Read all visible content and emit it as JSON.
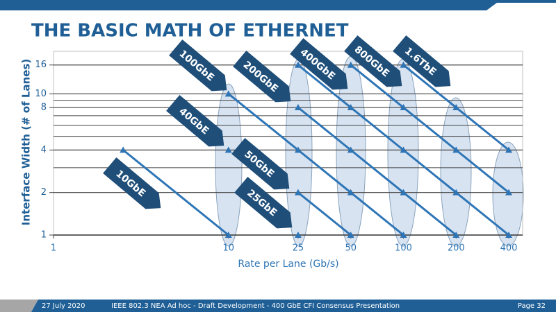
{
  "title": "THE BASIC MATH OF ETHERNET",
  "footer": {
    "date": "27 July 2020",
    "text": "IEEE 802.3 NEA Ad hoc - Draft Development - 400 GbE CFI Consensus Presentation",
    "page": "Page 32"
  },
  "chart_data": {
    "type": "line",
    "x_label": "Rate per Lane (Gb/s)",
    "y_label": "Interface Width (# of Lanes)",
    "xlog": true,
    "ylog": true,
    "color": "#2e75b6",
    "banner_color": "#1f4e79",
    "xlim": [
      1,
      480
    ],
    "xticks": [
      1,
      10,
      25,
      50,
      100,
      200,
      400
    ],
    "ylim": [
      1,
      20
    ],
    "yticks": [
      1,
      2,
      4,
      8,
      10,
      16
    ],
    "yminor": [
      3,
      5,
      6,
      7,
      9
    ],
    "series": [
      {
        "name": "10GbE",
        "x": [
          2.5,
          10
        ],
        "values": [
          4,
          1
        ]
      },
      {
        "name": "40GbE",
        "x": [
          10
        ],
        "values": [
          4
        ]
      },
      {
        "name": "100GbE",
        "x": [
          10,
          25,
          50,
          100
        ],
        "values": [
          10,
          4,
          2,
          1
        ]
      },
      {
        "name": "25GbE",
        "x": [
          25
        ],
        "values": [
          1
        ]
      },
      {
        "name": "50GbE",
        "x": [
          25,
          50
        ],
        "values": [
          2,
          1
        ]
      },
      {
        "name": "200GbE",
        "x": [
          25,
          50,
          100,
          200
        ],
        "values": [
          8,
          4,
          2,
          1
        ]
      },
      {
        "name": "400GbE",
        "x": [
          25,
          50,
          100,
          200,
          400
        ],
        "values": [
          16,
          8,
          4,
          2,
          1
        ]
      },
      {
        "name": "800GbE",
        "x": [
          50,
          100,
          200,
          400
        ],
        "values": [
          16,
          8,
          4,
          2
        ]
      },
      {
        "name": "1.6TbE",
        "x": [
          100,
          200,
          400
        ],
        "values": [
          16,
          8,
          4
        ]
      }
    ]
  }
}
